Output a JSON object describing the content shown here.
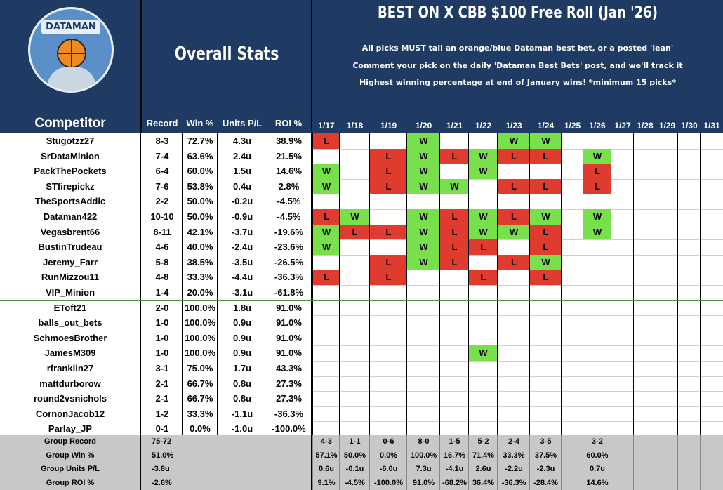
{
  "header": {
    "logo_text": "DATAMAN",
    "overall_title": "Overall Stats",
    "main_title": "BEST ON X CBB $100 Free Roll (Jan '26)",
    "rules": [
      "All picks MUST tail an orange/blue Dataman best bet, or a posted 'lean'",
      "Comment your pick on the daily 'Dataman Best Bets' post, and we'll track it",
      "Highest winning percentage at end of January wins! *minimum 15 picks*"
    ],
    "col_competitor": "Competitor",
    "col_record": "Record",
    "col_win": "Win %",
    "col_units": "Units P/L",
    "col_roi": "ROI %"
  },
  "dates": [
    "1/17",
    "1/18",
    "1/19",
    "1/20",
    "1/21",
    "1/22",
    "1/23",
    "1/24",
    "1/25",
    "1/26",
    "1/27",
    "1/28",
    "1/29",
    "1/30",
    "1/31"
  ],
  "competitors": [
    {
      "name": "Stugotzz27",
      "record": "8-3",
      "win": "72.7%",
      "units": "4.3u",
      "roi": "38.9%",
      "picks": [
        "L",
        "",
        "",
        "W",
        "",
        "",
        "W",
        "W",
        "",
        "",
        "",
        "",
        "",
        "",
        ""
      ]
    },
    {
      "name": "SrDataMinion",
      "record": "7-4",
      "win": "63.6%",
      "units": "2.4u",
      "roi": "21.5%",
      "picks": [
        "",
        "",
        "L",
        "W",
        "L",
        "W",
        "L",
        "L",
        "",
        "W",
        "",
        "",
        "",
        "",
        ""
      ]
    },
    {
      "name": "PackThePockets",
      "record": "6-4",
      "win": "60.0%",
      "units": "1.5u",
      "roi": "14.6%",
      "picks": [
        "W",
        "",
        "L",
        "W",
        "",
        "W",
        "",
        "",
        "",
        "L",
        "",
        "",
        "",
        "",
        ""
      ]
    },
    {
      "name": "STfirepickz",
      "record": "7-6",
      "win": "53.8%",
      "units": "0.4u",
      "roi": "2.8%",
      "picks": [
        "W",
        "",
        "L",
        "W",
        "W",
        "",
        "L",
        "L",
        "",
        "L",
        "",
        "",
        "",
        "",
        ""
      ]
    },
    {
      "name": "TheSportsAddic",
      "record": "2-2",
      "win": "50.0%",
      "units": "-0.2u",
      "roi": "-4.5%",
      "picks": [
        "",
        "",
        "",
        "",
        "",
        "",
        "",
        "",
        "",
        "",
        "",
        "",
        "",
        "",
        ""
      ]
    },
    {
      "name": "Dataman422",
      "record": "10-10",
      "win": "50.0%",
      "units": "-0.9u",
      "roi": "-4.5%",
      "picks": [
        "L",
        "W",
        "",
        "W",
        "L",
        "W",
        "L",
        "W",
        "",
        "W",
        "",
        "",
        "",
        "",
        ""
      ]
    },
    {
      "name": "Vegasbrent66",
      "record": "8-11",
      "win": "42.1%",
      "units": "-3.7u",
      "roi": "-19.6%",
      "picks": [
        "W",
        "L",
        "L",
        "W",
        "L",
        "W",
        "W",
        "L",
        "",
        "W",
        "",
        "",
        "",
        "",
        ""
      ]
    },
    {
      "name": "BustinTrudeau",
      "record": "4-6",
      "win": "40.0%",
      "units": "-2.4u",
      "roi": "-23.6%",
      "picks": [
        "W",
        "",
        "",
        "W",
        "L",
        "L",
        "",
        "L",
        "",
        "",
        "",
        "",
        "",
        "",
        ""
      ]
    },
    {
      "name": "Jeremy_Farr",
      "record": "5-8",
      "win": "38.5%",
      "units": "-3.5u",
      "roi": "-26.5%",
      "picks": [
        "",
        "",
        "L",
        "W",
        "L",
        "",
        "L",
        "W",
        "",
        "",
        "",
        "",
        "",
        "",
        ""
      ]
    },
    {
      "name": "RunMizzou11",
      "record": "4-8",
      "win": "33.3%",
      "units": "-4.4u",
      "roi": "-36.3%",
      "picks": [
        "L",
        "",
        "L",
        "",
        "",
        "L",
        "",
        "L",
        "",
        "",
        "",
        "",
        "",
        "",
        ""
      ]
    },
    {
      "name": "VIP_Minion",
      "record": "1-4",
      "win": "20.0%",
      "units": "-3.1u",
      "roi": "-61.8%",
      "picks": [
        "",
        "",
        "",
        "",
        "",
        "",
        "",
        "",
        "",
        "",
        "",
        "",
        "",
        "",
        ""
      ]
    },
    {
      "name": "EToft21",
      "record": "2-0",
      "win": "100.0%",
      "units": "1.8u",
      "roi": "91.0%",
      "picks": [
        "",
        "",
        "",
        "",
        "",
        "",
        "",
        "",
        "",
        "",
        "",
        "",
        "",
        "",
        ""
      ]
    },
    {
      "name": "balls_out_bets",
      "record": "1-0",
      "win": "100.0%",
      "units": "0.9u",
      "roi": "91.0%",
      "picks": [
        "",
        "",
        "",
        "",
        "",
        "",
        "",
        "",
        "",
        "",
        "",
        "",
        "",
        "",
        ""
      ]
    },
    {
      "name": "SchmoesBrother",
      "record": "1-0",
      "win": "100.0%",
      "units": "0.9u",
      "roi": "91.0%",
      "picks": [
        "",
        "",
        "",
        "",
        "",
        "",
        "",
        "",
        "",
        "",
        "",
        "",
        "",
        "",
        ""
      ]
    },
    {
      "name": "JamesM309",
      "record": "1-0",
      "win": "100.0%",
      "units": "0.9u",
      "roi": "91.0%",
      "picks": [
        "",
        "",
        "",
        "",
        "",
        "W",
        "",
        "",
        "",
        "",
        "",
        "",
        "",
        "",
        ""
      ]
    },
    {
      "name": "rfranklin27",
      "record": "3-1",
      "win": "75.0%",
      "units": "1.7u",
      "roi": "43.3%",
      "picks": [
        "",
        "",
        "",
        "",
        "",
        "",
        "",
        "",
        "",
        "",
        "",
        "",
        "",
        "",
        ""
      ]
    },
    {
      "name": "mattdurborow",
      "record": "2-1",
      "win": "66.7%",
      "units": "0.8u",
      "roi": "27.3%",
      "picks": [
        "",
        "",
        "",
        "",
        "",
        "",
        "",
        "",
        "",
        "",
        "",
        "",
        "",
        "",
        ""
      ]
    },
    {
      "name": "round2vsnichols",
      "record": "2-1",
      "win": "66.7%",
      "units": "0.8u",
      "roi": "27.3%",
      "picks": [
        "",
        "",
        "",
        "",
        "",
        "",
        "",
        "",
        "",
        "",
        "",
        "",
        "",
        "",
        ""
      ]
    },
    {
      "name": "CornonJacob12",
      "record": "1-2",
      "win": "33.3%",
      "units": "-1.1u",
      "roi": "-36.3%",
      "picks": [
        "",
        "",
        "",
        "",
        "",
        "",
        "",
        "",
        "",
        "",
        "",
        "",
        "",
        "",
        ""
      ]
    },
    {
      "name": "Parlay_JP",
      "record": "0-1",
      "win": "0.0%",
      "units": "-1.0u",
      "roi": "-100.0%",
      "picks": [
        "",
        "",
        "",
        "",
        "",
        "",
        "",
        "",
        "",
        "",
        "",
        "",
        "",
        "",
        ""
      ]
    }
  ],
  "footer": [
    {
      "label": "Group Record",
      "total": "75-72",
      "daily": [
        "4-3",
        "1-1",
        "0-6",
        "8-0",
        "1-5",
        "5-2",
        "2-4",
        "3-5",
        "",
        "3-2",
        "",
        "",
        "",
        "",
        ""
      ]
    },
    {
      "label": "Group Win %",
      "total": "51.0%",
      "daily": [
        "57.1%",
        "50.0%",
        "0.0%",
        "100.0%",
        "16.7%",
        "71.4%",
        "33.3%",
        "37.5%",
        "",
        "60.0%",
        "",
        "",
        "",
        "",
        ""
      ]
    },
    {
      "label": "Group Units P/L",
      "total": "-3.8u",
      "daily": [
        "0.6u",
        "-0.1u",
        "-6.0u",
        "7.3u",
        "-4.1u",
        "2.6u",
        "-2.2u",
        "-2.3u",
        "",
        "0.7u",
        "",
        "",
        "",
        "",
        ""
      ]
    },
    {
      "label": "Group ROI %",
      "total": "-2.6%",
      "daily": [
        "9.1%",
        "-4.5%",
        "-100.0%",
        "91.0%",
        "-68.2%",
        "36.4%",
        "-36.3%",
        "-28.4%",
        "",
        "14.6%",
        "",
        "",
        "",
        "",
        ""
      ]
    }
  ],
  "colors": {
    "header_bg": "#1f3a63",
    "win": "#78e04a",
    "loss": "#e03b2f",
    "footer_bg": "#c8c8c8"
  }
}
